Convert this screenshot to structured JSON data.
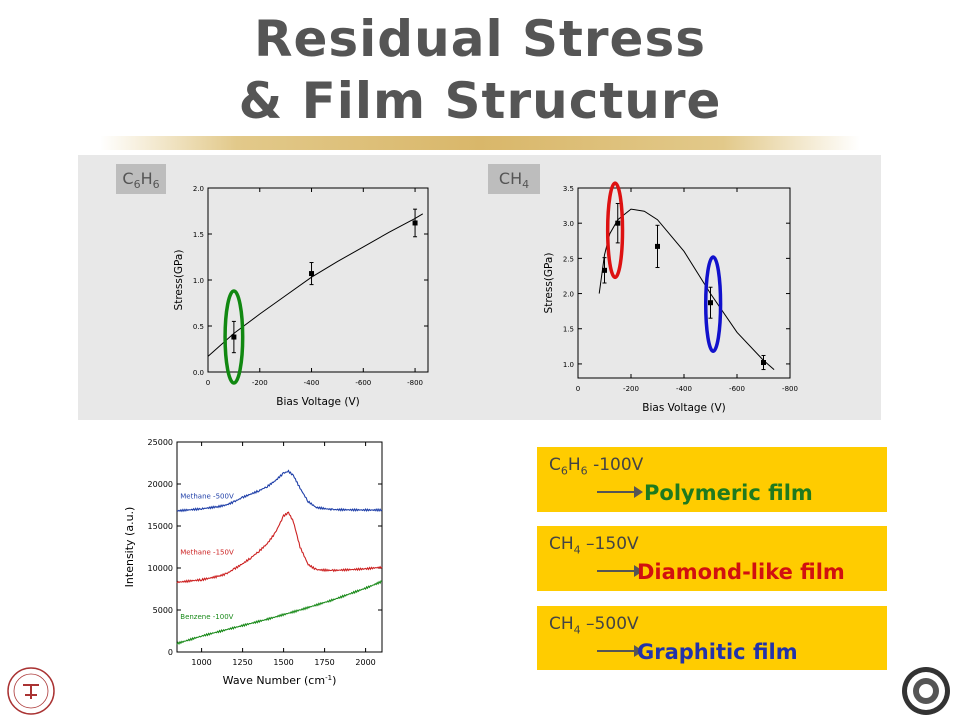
{
  "title": {
    "line1": "Residual Stress",
    "line2": "& Film Structure"
  },
  "chart_data": [
    {
      "type": "scatter",
      "tag": {
        "base": "C",
        "s1": "6",
        "mid": "H",
        "s2": "6"
      },
      "xlabel": "Bias Voltage (V)",
      "ylabel": "Stress(GPa)",
      "xlim": [
        0,
        -850
      ],
      "ylim": [
        0.0,
        2.0
      ],
      "xticks": [
        0,
        -200,
        -400,
        -600,
        -800
      ],
      "xtick_labels": [
        "0",
        "-200",
        "-400",
        "-600",
        "-800"
      ],
      "yticks": [
        0.0,
        0.5,
        1.0,
        1.5,
        2.0
      ],
      "ytick_labels": [
        "0.0",
        "0.5",
        "1.0",
        "1.5",
        "2.0"
      ],
      "points": [
        {
          "x": -100,
          "y": 0.38,
          "err": 0.17
        },
        {
          "x": -400,
          "y": 1.07,
          "err": 0.12
        },
        {
          "x": -800,
          "y": 1.62,
          "err": 0.15
        }
      ],
      "fit": [
        [
          0,
          0.17
        ],
        [
          -100,
          0.42
        ],
        [
          -200,
          0.63
        ],
        [
          -300,
          0.83
        ],
        [
          -400,
          1.03
        ],
        [
          -500,
          1.2
        ],
        [
          -600,
          1.36
        ],
        [
          -700,
          1.52
        ],
        [
          -800,
          1.67
        ],
        [
          -830,
          1.72
        ]
      ],
      "highlights": [
        {
          "x": -100,
          "y": 0.38,
          "rx": 34,
          "ry": 0.5,
          "color": "#118811"
        }
      ]
    },
    {
      "type": "scatter",
      "tag": {
        "base": "CH",
        "s1": "4"
      },
      "xlabel": "Bias Voltage (V)",
      "ylabel": "Stress(GPa)",
      "xlim": [
        0,
        -800
      ],
      "ylim": [
        0.8,
        3.5
      ],
      "xticks": [
        0,
        -200,
        -400,
        -600,
        -800
      ],
      "xtick_labels": [
        "0",
        "-200",
        "-400",
        "-600",
        "-800"
      ],
      "yticks": [
        1.0,
        1.5,
        2.0,
        2.5,
        3.0,
        3.5
      ],
      "ytick_labels": [
        "1.0",
        "1.5",
        "2.0",
        "2.5",
        "3.0",
        "3.5"
      ],
      "points": [
        {
          "x": -100,
          "y": 2.33,
          "err": 0.18
        },
        {
          "x": -150,
          "y": 3.0,
          "err": 0.28
        },
        {
          "x": -300,
          "y": 2.67,
          "err": 0.3
        },
        {
          "x": -500,
          "y": 1.87,
          "err": 0.22
        },
        {
          "x": -700,
          "y": 1.02,
          "err": 0.1
        }
      ],
      "fit": [
        [
          -80,
          2.0
        ],
        [
          -100,
          2.55
        ],
        [
          -120,
          2.85
        ],
        [
          -150,
          3.05
        ],
        [
          -200,
          3.2
        ],
        [
          -250,
          3.17
        ],
        [
          -300,
          3.05
        ],
        [
          -400,
          2.6
        ],
        [
          -500,
          2.0
        ],
        [
          -600,
          1.45
        ],
        [
          -700,
          1.05
        ],
        [
          -740,
          0.92
        ]
      ],
      "highlights": [
        {
          "x": -140,
          "y": 2.9,
          "rx": 28,
          "ry": 0.67,
          "color": "#dd1111"
        },
        {
          "x": -510,
          "y": 1.85,
          "rx": 28,
          "ry": 0.67,
          "color": "#1111cc"
        }
      ]
    },
    {
      "type": "line",
      "xlabel_base": "Wave Number (cm",
      "xlabel_sup": "-1",
      "xlabel_end": ")",
      "ylabel": "Intensity (a.u.)",
      "xlim": [
        850,
        2100
      ],
      "ylim": [
        0,
        25000
      ],
      "xticks": [
        1000,
        1250,
        1500,
        1750,
        2000
      ],
      "xtick_labels": [
        "1000",
        "1250",
        "1500",
        "1750",
        "2000"
      ],
      "yticks": [
        0,
        5000,
        10000,
        15000,
        20000,
        25000
      ],
      "ytick_labels": [
        "0",
        "5000",
        "10000",
        "15000",
        "20000",
        "25000"
      ],
      "series": [
        {
          "name": "Methane -500V",
          "color": "#1f3fa8",
          "label_x": 870,
          "label_y": 18300,
          "x": [
            850,
            1000,
            1100,
            1150,
            1200,
            1250,
            1300,
            1350,
            1400,
            1450,
            1500,
            1530,
            1560,
            1600,
            1650,
            1700,
            1800,
            2000,
            2100
          ],
          "y": [
            16800,
            17050,
            17300,
            17500,
            17900,
            18400,
            18800,
            19200,
            19700,
            20400,
            21300,
            21500,
            21000,
            19500,
            17900,
            17200,
            16950,
            16900,
            16900
          ]
        },
        {
          "name": "Methane -150V",
          "color": "#cc2222",
          "label_x": 870,
          "label_y": 11600,
          "x": [
            850,
            1000,
            1100,
            1150,
            1200,
            1250,
            1300,
            1350,
            1400,
            1450,
            1500,
            1530,
            1560,
            1600,
            1650,
            1700,
            1800,
            2000,
            2100
          ],
          "y": [
            8300,
            8600,
            9000,
            9300,
            9900,
            10500,
            11200,
            12000,
            12900,
            14200,
            16200,
            16600,
            15500,
            12500,
            10400,
            9800,
            9700,
            9900,
            10100
          ]
        },
        {
          "name": "Benzene -100V",
          "color": "#1a8a1a",
          "label_x": 870,
          "label_y": 3900,
          "x": [
            850,
            1000,
            1200,
            1400,
            1600,
            1800,
            2000,
            2100
          ],
          "y": [
            1000,
            1900,
            2900,
            3900,
            5000,
            6200,
            7600,
            8400
          ]
        }
      ]
    }
  ],
  "results": [
    {
      "gas": {
        "base": "C",
        "s1": "6",
        "mid": "H",
        "s2": "6"
      },
      "voltage": " -100V",
      "film": "Polymeric film",
      "color": "#1e7a1e"
    },
    {
      "gas": {
        "base": "CH",
        "s1": "4",
        "mid": "",
        "s2": ""
      },
      "voltage": " –150V",
      "film": "Diamond-like film",
      "color": "#d11010"
    },
    {
      "gas": {
        "base": "CH",
        "s1": "4",
        "mid": "",
        "s2": ""
      },
      "voltage": " –500V",
      "film": "Graphitic film",
      "color": "#2233aa"
    }
  ],
  "logos": {
    "left": "KIST",
    "right": "university-seal"
  }
}
